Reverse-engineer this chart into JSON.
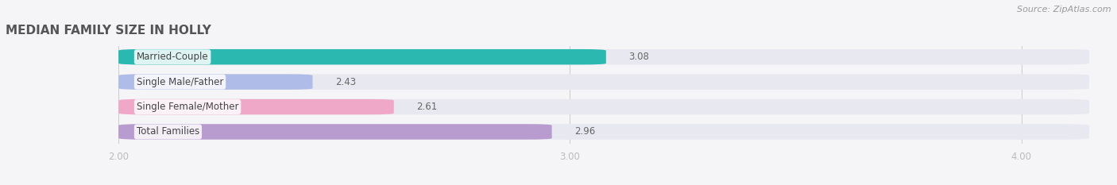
{
  "title": "MEDIAN FAMILY SIZE IN HOLLY",
  "source": "Source: ZipAtlas.com",
  "categories": [
    "Married-Couple",
    "Single Male/Father",
    "Single Female/Mother",
    "Total Families"
  ],
  "values": [
    3.08,
    2.43,
    2.61,
    2.96
  ],
  "bar_colors": [
    "#2ab8b0",
    "#b0bce8",
    "#f0a8c8",
    "#b89cd0"
  ],
  "bar_bg_color": "#e8e8f0",
  "xlim_left": 1.75,
  "xlim_right": 4.15,
  "xticks": [
    2.0,
    3.0,
    4.0
  ],
  "xtick_labels": [
    "2.00",
    "3.00",
    "4.00"
  ],
  "background_color": "#f5f5f8",
  "title_fontsize": 11,
  "label_fontsize": 8.5,
  "value_fontsize": 8.5,
  "source_fontsize": 8,
  "bar_height": 0.62
}
